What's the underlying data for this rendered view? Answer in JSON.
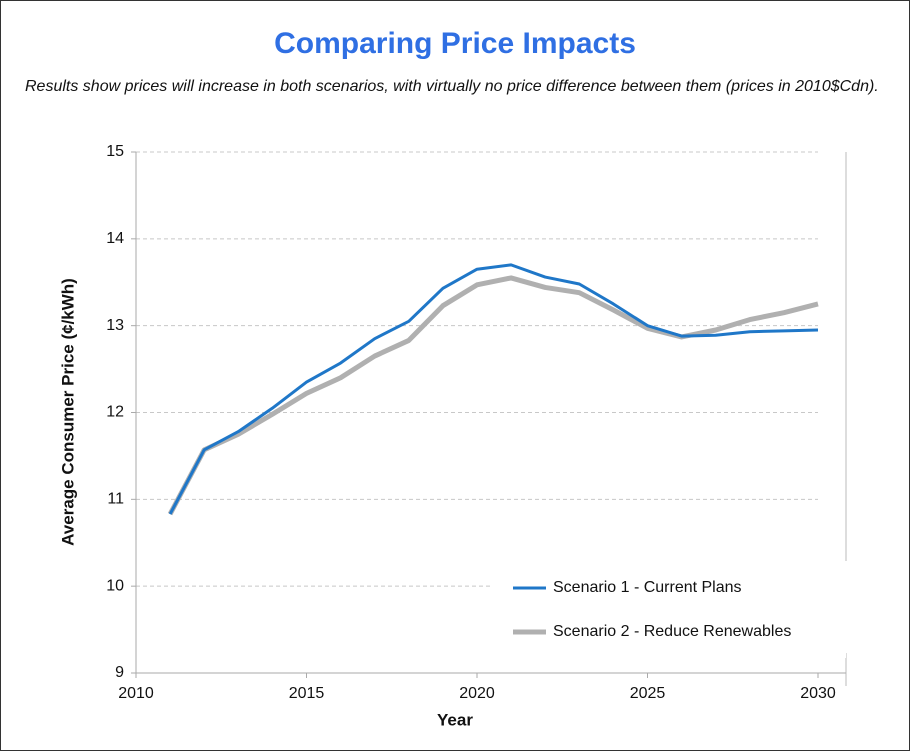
{
  "chart_data": {
    "type": "line",
    "title": "Comparing Price Impacts",
    "subtitle": "Results show prices will increase in both scenarios, with virtually no price difference between them (prices in 2010$Cdn).",
    "x_label": "Year",
    "y_label": "Average Consumer Price (¢/kWh)",
    "x": [
      2011,
      2012,
      2013,
      2014,
      2015,
      2016,
      2017,
      2018,
      2019,
      2020,
      2021,
      2022,
      2023,
      2024,
      2025,
      2026,
      2027,
      2028,
      2029,
      2030
    ],
    "series": [
      {
        "name": "Scenario 1 - Current Plans",
        "color": "#1f77c8",
        "values": [
          10.83,
          11.57,
          11.78,
          12.05,
          12.35,
          12.57,
          12.85,
          13.05,
          13.43,
          13.65,
          13.7,
          13.56,
          13.48,
          13.25,
          13.0,
          12.88,
          12.89,
          12.93,
          12.94,
          12.95
        ]
      },
      {
        "name": "Scenario 2 - Reduce Renewables",
        "color": "#b0b0b0",
        "values": [
          10.83,
          11.57,
          11.75,
          11.98,
          12.22,
          12.4,
          12.65,
          12.83,
          13.23,
          13.47,
          13.55,
          13.44,
          13.38,
          13.18,
          12.97,
          12.87,
          12.95,
          13.07,
          13.15,
          13.25
        ]
      }
    ],
    "xlim": [
      2010,
      2030
    ],
    "xticks": [
      2010,
      2015,
      2020,
      2025,
      2030
    ],
    "ylim": [
      9,
      15
    ],
    "yticks": [
      9,
      10,
      11,
      12,
      13,
      14,
      15
    ],
    "grid": true,
    "legend": "lower right"
  }
}
